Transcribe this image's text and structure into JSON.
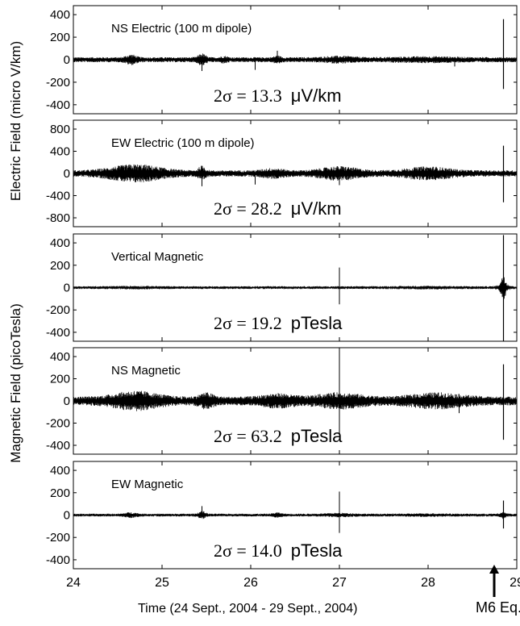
{
  "chart_data": {
    "type": "line",
    "xlabel": "Time (24 Sept., 2004 - 29 Sept., 2004)",
    "xlim": [
      24,
      29
    ],
    "x_ticks": [
      "24",
      "25",
      "26",
      "27",
      "28",
      "29"
    ],
    "ylabel_electric": "Electric Field (micro V/km)",
    "ylabel_magnetic": "Magnetic Field (picoTesla)",
    "event_marker": {
      "label": "M6 Eq.",
      "x": 28.85
    },
    "panels": [
      {
        "name": "NS Electric (100 m dipole)",
        "ylim": [
          -480,
          480
        ],
        "yticks": [
          400,
          200,
          0,
          -200,
          -400
        ],
        "stat_prefix": "2σ = ",
        "stat_value": "13.3",
        "stat_unit": "μV/km",
        "noise": 16,
        "bursts": [
          [
            24.65,
            0.07,
            2.2
          ],
          [
            25.45,
            0.05,
            2.6
          ],
          [
            25.7,
            0.05,
            1.6
          ],
          [
            26.3,
            0.05,
            1.7
          ],
          [
            27.0,
            0.2,
            1.6
          ],
          [
            28.0,
            0.4,
            1.4
          ]
        ],
        "spikes": [
          [
            25.45,
            -100
          ],
          [
            26.05,
            -90
          ],
          [
            26.3,
            80
          ],
          [
            28.3,
            -60
          ]
        ],
        "event_spike": [
          360,
          -260
        ]
      },
      {
        "name": "EW Electric (100 m dipole)",
        "ylim": [
          -960,
          960
        ],
        "yticks": [
          800,
          400,
          0,
          -400,
          -800
        ],
        "stat_prefix": "2σ = ",
        "stat_value": "28.2",
        "stat_unit": "μV/km",
        "noise": 40,
        "bursts": [
          [
            24.7,
            0.35,
            3.0
          ],
          [
            25.45,
            0.05,
            2.5
          ],
          [
            26.25,
            0.15,
            1.8
          ],
          [
            27.0,
            0.25,
            2.4
          ],
          [
            28.0,
            0.3,
            2.3
          ]
        ],
        "spikes": [
          [
            25.45,
            -230
          ],
          [
            26.05,
            -200
          ],
          [
            27.0,
            -210
          ]
        ],
        "event_spike": [
          500,
          -520
        ]
      },
      {
        "name": "Vertical Magnetic",
        "ylim": [
          -480,
          480
        ],
        "yticks": [
          400,
          200,
          0,
          -200,
          -400
        ],
        "stat_prefix": "2σ = ",
        "stat_value": "19.2",
        "stat_unit": "pTesla",
        "noise": 9,
        "bursts": [
          [
            24.7,
            0.3,
            1.3
          ],
          [
            28.0,
            0.4,
            1.3
          ]
        ],
        "spikes": [
          [
            27.0,
            180
          ],
          [
            27.0,
            -150
          ]
        ],
        "event_spike": [
          470,
          -480
        ],
        "event_envelope": 110
      },
      {
        "name": "NS Magnetic",
        "ylim": [
          -480,
          480
        ],
        "yticks": [
          400,
          200,
          0,
          -200,
          -400
        ],
        "stat_prefix": "2σ = ",
        "stat_value": "63.2",
        "stat_unit": "pTesla",
        "noise": 28,
        "bursts": [
          [
            24.7,
            0.3,
            2.4
          ],
          [
            25.5,
            0.1,
            2.0
          ],
          [
            26.3,
            0.2,
            1.8
          ],
          [
            27.0,
            0.3,
            2.0
          ],
          [
            28.1,
            0.35,
            2.0
          ]
        ],
        "spikes": [
          [
            27.0,
            460
          ],
          [
            27.0,
            -300
          ],
          [
            28.35,
            -110
          ]
        ],
        "event_spike": [
          330,
          -350
        ]
      },
      {
        "name": "EW Magnetic",
        "ylim": [
          -480,
          480
        ],
        "yticks": [
          400,
          200,
          0,
          -200,
          -400
        ],
        "stat_prefix": "2σ = ",
        "stat_value": "14.0",
        "stat_unit": "pTesla",
        "noise": 9,
        "bursts": [
          [
            24.65,
            0.08,
            2.2
          ],
          [
            25.45,
            0.05,
            3.0
          ],
          [
            26.3,
            0.06,
            2.0
          ],
          [
            27.0,
            0.2,
            1.6
          ],
          [
            28.0,
            0.3,
            1.3
          ]
        ],
        "spikes": [
          [
            25.45,
            80
          ],
          [
            27.0,
            210
          ],
          [
            27.0,
            -160
          ]
        ],
        "event_spike": [
          130,
          -120
        ],
        "event_envelope": 20
      }
    ]
  }
}
